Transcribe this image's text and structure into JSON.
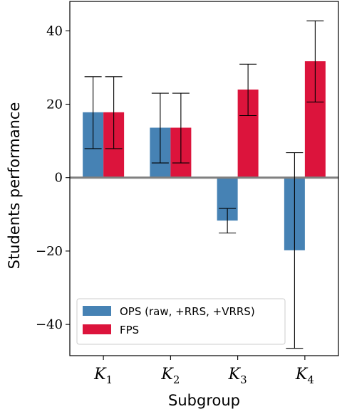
{
  "chart_data": {
    "type": "bar",
    "categories": [
      "K1",
      "K2",
      "K3",
      "K4"
    ],
    "category_labels": [
      {
        "base": "K",
        "sub": "1"
      },
      {
        "base": "K",
        "sub": "2"
      },
      {
        "base": "K",
        "sub": "3"
      },
      {
        "base": "K",
        "sub": "4"
      }
    ],
    "series": [
      {
        "name": "OPS (raw, +RRS, +VRRS)",
        "color": "#4682b4",
        "values": [
          17.8,
          13.6,
          -11.7,
          -19.8
        ],
        "err_low": [
          7.9,
          4.0,
          -15.1,
          -46.5
        ],
        "err_high": [
          27.5,
          23.0,
          -8.4,
          6.8
        ]
      },
      {
        "name": "FPS",
        "color": "#dc143c",
        "values": [
          17.8,
          13.6,
          24.0,
          31.7
        ],
        "err_low": [
          7.9,
          4.0,
          16.9,
          20.6
        ],
        "err_high": [
          27.5,
          23.0,
          30.9,
          42.7
        ]
      }
    ],
    "xlabel": "Subgroup",
    "ylabel": "Students performance",
    "ylim": [
      -48.5,
      48
    ],
    "yticks": [
      40,
      20,
      0,
      -20,
      -40
    ],
    "ytick_labels": [
      "40",
      "20",
      "0",
      "−20",
      "−40"
    ],
    "zero_line": true,
    "grid": false,
    "legend_position": "lower-left"
  }
}
